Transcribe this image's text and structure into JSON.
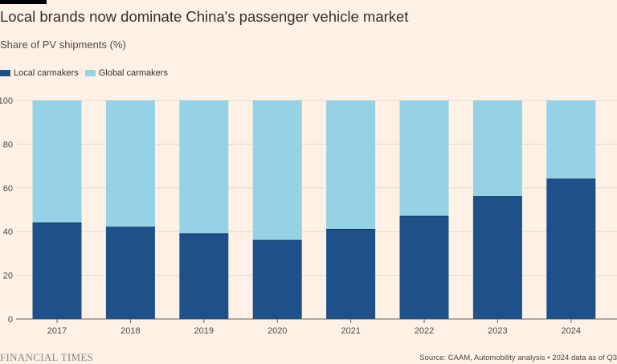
{
  "title": "Local brands now dominate China's passenger vehicle market",
  "subtitle": "Share of PV shipments (%)",
  "colors": {
    "local": "#1E508A",
    "global": "#96D2E6",
    "background": "#FFF1E5",
    "grid": "#E6D9CE"
  },
  "legend": {
    "local_label": "Local carmakers",
    "global_label": "Global carmakers"
  },
  "chart_data": {
    "type": "bar",
    "stacked": true,
    "title": "Local brands now dominate China's passenger vehicle market",
    "ylabel": "Share of PV shipments (%)",
    "xlabel": "",
    "categories": [
      "2017",
      "2018",
      "2019",
      "2020",
      "2021",
      "2022",
      "2023",
      "2024"
    ],
    "series": [
      {
        "name": "Local carmakers",
        "values": [
          44,
          42,
          39,
          36,
          41,
          47,
          56,
          64
        ]
      },
      {
        "name": "Global carmakers",
        "values": [
          56,
          58,
          61,
          64,
          59,
          53,
          44,
          36
        ]
      }
    ],
    "ylim": [
      0,
      100
    ],
    "yticks": [
      0,
      20,
      40,
      60,
      80,
      100
    ],
    "grid": true,
    "legend_position": "top-left"
  },
  "footer": {
    "brand": "FINANCIAL TIMES",
    "source": "Source: CAAM, Automobility analysis • 2024 data as of Q3"
  }
}
